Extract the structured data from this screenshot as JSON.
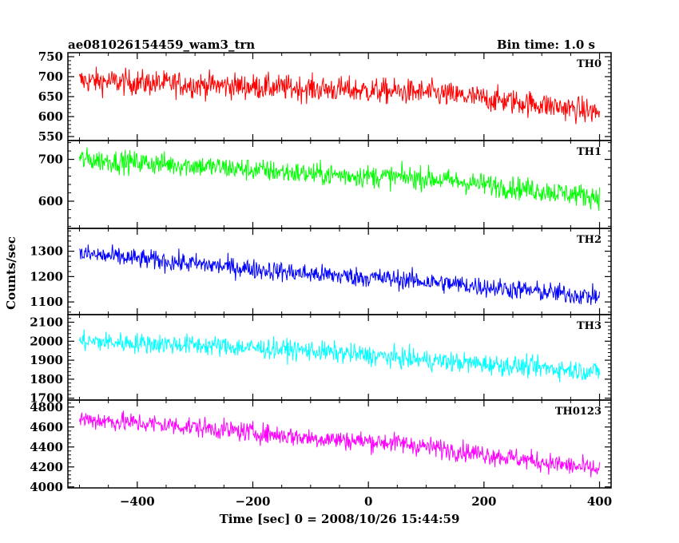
{
  "header": {
    "title": "ae081026154459_wam3_trn",
    "bin_time": "Bin time: 1.0 s"
  },
  "chart_data": {
    "type": "line",
    "title": "ae081026154459_wam3_trn",
    "xlabel": "Time [sec] 0 = 2008/10/26 15:44:59",
    "ylabel": "Counts/sec",
    "xlim": [
      -520,
      420
    ],
    "x_ticks": [
      -400,
      -200,
      0,
      200,
      400
    ],
    "x_tick_labels": [
      "−400",
      "−200",
      "0",
      "200",
      "400"
    ],
    "x_data_range": [
      -500,
      400
    ],
    "bin_time_s": 1.0,
    "grid": false,
    "panels": [
      {
        "name": "TH0",
        "color": "#ff0000",
        "ylim": [
          540,
          760
        ],
        "yticks": [
          550,
          600,
          650,
          700,
          750
        ],
        "trend": [
          [
            -500,
            690
          ],
          [
            -300,
            680
          ],
          [
            -100,
            670
          ],
          [
            100,
            660
          ],
          [
            300,
            630
          ],
          [
            400,
            610
          ]
        ],
        "noise_amplitude": 45
      },
      {
        "name": "TH1",
        "color": "#00ff00",
        "ylim": [
          535,
          745
        ],
        "yticks": [
          600,
          700
        ],
        "trend": [
          [
            -500,
            700
          ],
          [
            -300,
            685
          ],
          [
            -100,
            665
          ],
          [
            100,
            655
          ],
          [
            300,
            625
          ],
          [
            400,
            610
          ]
        ],
        "noise_amplitude": 38
      },
      {
        "name": "TH2",
        "color": "#0000ff",
        "ylim": [
          1050,
          1390
        ],
        "yticks": [
          1100,
          1200,
          1300
        ],
        "trend": [
          [
            -500,
            1290
          ],
          [
            -300,
            1250
          ],
          [
            -100,
            1210
          ],
          [
            50,
            1190
          ],
          [
            200,
            1160
          ],
          [
            400,
            1120
          ]
        ],
        "noise_amplitude": 55
      },
      {
        "name": "TH3",
        "color": "#00ffff",
        "ylim": [
          1690,
          2140
        ],
        "yticks": [
          1700,
          1800,
          1900,
          2000,
          2100
        ],
        "trend": [
          [
            -500,
            2000
          ],
          [
            -300,
            1980
          ],
          [
            -100,
            1950
          ],
          [
            100,
            1900
          ],
          [
            300,
            1860
          ],
          [
            400,
            1840
          ]
        ],
        "noise_amplitude": 75
      },
      {
        "name": "TH0123",
        "color": "#ff00ff",
        "ylim": [
          3990,
          4870
        ],
        "yticks": [
          4000,
          4200,
          4400,
          4600,
          4800
        ],
        "trend": [
          [
            -500,
            4680
          ],
          [
            -300,
            4600
          ],
          [
            -100,
            4490
          ],
          [
            50,
            4440
          ],
          [
            200,
            4330
          ],
          [
            400,
            4170
          ]
        ],
        "noise_amplitude": 140
      }
    ]
  }
}
